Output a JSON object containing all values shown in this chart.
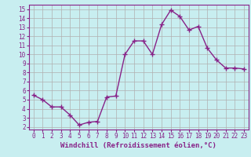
{
  "x": [
    0,
    1,
    2,
    3,
    4,
    5,
    6,
    7,
    8,
    9,
    10,
    11,
    12,
    13,
    14,
    15,
    16,
    17,
    18,
    19,
    20,
    21,
    22,
    23
  ],
  "y": [
    5.5,
    5.0,
    4.2,
    4.2,
    3.3,
    2.2,
    2.5,
    2.6,
    5.3,
    5.4,
    10.0,
    11.5,
    11.5,
    10.0,
    13.3,
    14.9,
    14.2,
    12.7,
    13.1,
    10.7,
    9.4,
    8.5,
    8.5,
    8.4
  ],
  "line_color": "#882288",
  "marker": "+",
  "markersize": 4,
  "linewidth": 1.0,
  "xlabel": "Windchill (Refroidissement éolien,°C)",
  "xlabel_fontsize": 6.5,
  "ylabel_ticks": [
    2,
    3,
    4,
    5,
    6,
    7,
    8,
    9,
    10,
    11,
    12,
    13,
    14,
    15
  ],
  "xtick_labels": [
    "0",
    "1",
    "2",
    "3",
    "4",
    "5",
    "6",
    "7",
    "8",
    "9",
    "10",
    "11",
    "12",
    "13",
    "14",
    "15",
    "16",
    "17",
    "18",
    "19",
    "20",
    "21",
    "22",
    "23"
  ],
  "ylim": [
    1.7,
    15.5
  ],
  "xlim": [
    -0.5,
    23.5
  ],
  "bg_color": "#c8eef0",
  "grid_color": "#b0b0b0",
  "tick_color": "#882288",
  "tick_fontsize": 5.5,
  "spine_color": "#882288",
  "xlabel_fontweight": "bold"
}
